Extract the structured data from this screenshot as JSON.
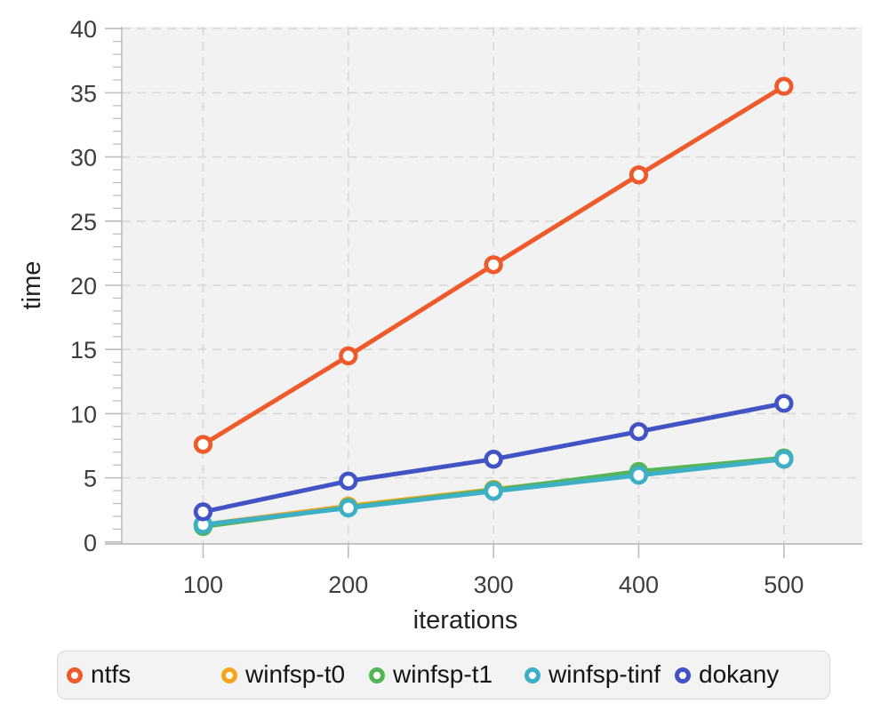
{
  "chart_data": {
    "type": "line",
    "title": "",
    "xlabel": "iterations",
    "ylabel": "time",
    "x": [
      100,
      200,
      300,
      400,
      500
    ],
    "series": [
      {
        "name": "winfsp-t0",
        "color": "#f7a41f",
        "values": [
          1.35,
          2.8,
          4.1,
          5.35,
          6.45
        ]
      },
      {
        "name": "winfsp-t1",
        "color": "#55b559",
        "values": [
          1.2,
          2.7,
          4.05,
          5.5,
          6.55
        ]
      },
      {
        "name": "winfsp-tinf",
        "color": "#3dafc6",
        "values": [
          1.35,
          2.65,
          3.95,
          5.2,
          6.45
        ]
      },
      {
        "name": "dokany",
        "color": "#4253c5",
        "values": [
          2.35,
          4.75,
          6.45,
          8.6,
          10.8
        ]
      },
      {
        "name": "ntfs",
        "color": "#ee5a29",
        "values": [
          7.6,
          14.5,
          21.6,
          28.6,
          35.5
        ]
      }
    ],
    "xlim": [
      44,
      554
    ],
    "ylim": [
      0,
      40
    ],
    "x_ticks": [
      100,
      200,
      300,
      400,
      500
    ],
    "y_major_ticks": [
      0,
      5,
      10,
      15,
      20,
      25,
      30,
      35,
      40
    ],
    "y_minor_step": 1,
    "grid": true,
    "grid_style": "dashed",
    "legend_position": "bottom",
    "plot_bg": "#f2f2f2",
    "grid_color": "#d8d8d8",
    "axis_color": "#bcbcbc",
    "tick_label_color": "#3d3d3d",
    "axis_title_color": "#222222"
  },
  "legend": {
    "items": [
      {
        "label": "ntfs",
        "color": "#ee5a29",
        "marker": "ring-icon"
      },
      {
        "label": "winfsp-t0",
        "color": "#f7a41f",
        "marker": "ring-icon"
      },
      {
        "label": "winfsp-t1",
        "color": "#55b559",
        "marker": "ring-icon"
      },
      {
        "label": "winfsp-tinf",
        "color": "#3dafc6",
        "marker": "ring-icon"
      },
      {
        "label": "dokany",
        "color": "#4253c5",
        "marker": "ring-icon"
      }
    ]
  }
}
